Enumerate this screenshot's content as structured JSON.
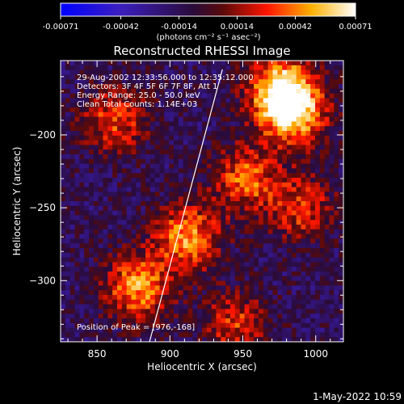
{
  "colorbar": {
    "tick_labels": [
      "-0.00071",
      "-0.00042",
      "-0.00014",
      "0.00014",
      "0.00042",
      "0.00071"
    ],
    "units_label": "(photons cm⁻² s⁻¹ asec⁻²)",
    "range": [
      -0.00071,
      0.00071
    ],
    "colormap": "blue-purple-red-yellow-white"
  },
  "chart_data": {
    "type": "heatmap",
    "title": "Reconstructed RHESSI Image",
    "xlabel": "Heliocentric X (arcsec)",
    "ylabel": "Heliocentric Y (arcsec)",
    "xlim": [
      825,
      1019
    ],
    "ylim": [
      -342,
      -149
    ],
    "x_ticks": [
      850,
      900,
      950,
      1000
    ],
    "y_ticks": [
      -200,
      -250,
      -300
    ],
    "x_tick_labels": [
      "850",
      "900",
      "950",
      "1000"
    ],
    "y_tick_labels": [
      "−200",
      "−250",
      "−300"
    ],
    "grid_columns": 60,
    "grid_rows": 60,
    "limb_line": [
      [
        886,
        -342
      ],
      [
        936,
        -155
      ]
    ],
    "hot_spots": [
      {
        "x": 976,
        "y": -168,
        "intensity": 0.00071
      },
      {
        "x": 985,
        "y": -186,
        "intensity": 0.00065
      },
      {
        "x": 912,
        "y": -270,
        "intensity": 0.0006
      },
      {
        "x": 878,
        "y": -305,
        "intensity": 0.0006
      },
      {
        "x": 952,
        "y": -230,
        "intensity": 0.0005
      },
      {
        "x": 862,
        "y": -190,
        "intensity": 0.00045
      },
      {
        "x": 990,
        "y": -250,
        "intensity": 0.00042
      },
      {
        "x": 945,
        "y": -330,
        "intensity": 0.0004
      }
    ],
    "annotations": {
      "time": "29-Aug-2002 12:33:56.000 to 12:35:12.000",
      "detectors": "Detectors: 3F 4F 5F 6F 7F 8F, Att 1",
      "energy": "Energy Range: 25.0 - 50.0 keV",
      "method": "Clean    Total Counts: 1.14E+03",
      "peak": "Position of Peak = [976,-168]"
    }
  },
  "footer": {
    "timestamp": "1-May-2022 10:59"
  }
}
